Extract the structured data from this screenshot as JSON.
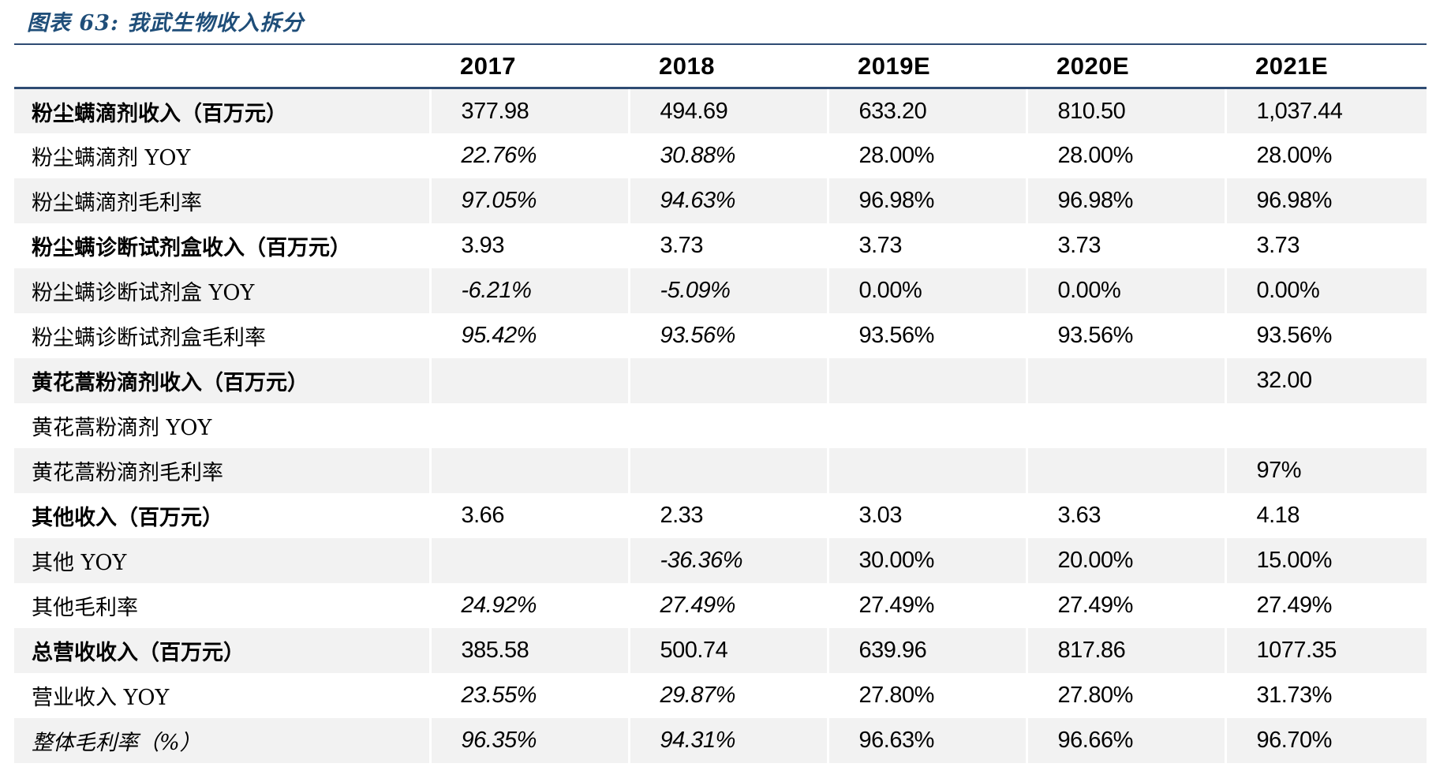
{
  "title": "图表 63: 我武生物收入拆分",
  "colors": {
    "title_text": "#1F4E79",
    "rule_line": "#2E4B73",
    "row_shade": "#F2F2F2",
    "body_text": "#000000",
    "background": "#FFFFFF"
  },
  "table": {
    "columns": [
      "",
      "2017",
      "2018",
      "2019E",
      "2020E",
      "2021E"
    ],
    "rows": [
      {
        "label": "粉尘螨滴剂收入（百万元）",
        "label_bold": true,
        "label_italic": false,
        "values": [
          "377.98",
          "494.69",
          "633.20",
          "810.50",
          "1,037.44"
        ],
        "italics": [
          false,
          false,
          false,
          false,
          false
        ]
      },
      {
        "label": "粉尘螨滴剂 YOY",
        "label_bold": false,
        "label_italic": false,
        "values": [
          "22.76%",
          "30.88%",
          "28.00%",
          "28.00%",
          "28.00%"
        ],
        "italics": [
          true,
          true,
          false,
          false,
          false
        ]
      },
      {
        "label": "粉尘螨滴剂毛利率",
        "label_bold": false,
        "label_italic": false,
        "values": [
          "97.05%",
          "94.63%",
          "96.98%",
          "96.98%",
          "96.98%"
        ],
        "italics": [
          true,
          true,
          false,
          false,
          false
        ]
      },
      {
        "label": "粉尘螨诊断试剂盒收入（百万元）",
        "label_bold": true,
        "label_italic": false,
        "values": [
          "3.93",
          "3.73",
          "3.73",
          "3.73",
          "3.73"
        ],
        "italics": [
          false,
          false,
          false,
          false,
          false
        ]
      },
      {
        "label": "粉尘螨诊断试剂盒 YOY",
        "label_bold": false,
        "label_italic": false,
        "values": [
          "-6.21%",
          "-5.09%",
          "0.00%",
          "0.00%",
          "0.00%"
        ],
        "italics": [
          true,
          true,
          false,
          false,
          false
        ]
      },
      {
        "label": "粉尘螨诊断试剂盒毛利率",
        "label_bold": false,
        "label_italic": false,
        "values": [
          "95.42%",
          "93.56%",
          "93.56%",
          "93.56%",
          "93.56%"
        ],
        "italics": [
          true,
          true,
          false,
          false,
          false
        ]
      },
      {
        "label": "黄花蒿粉滴剂收入（百万元）",
        "label_bold": true,
        "label_italic": false,
        "values": [
          "",
          "",
          "",
          "",
          "32.00"
        ],
        "italics": [
          false,
          false,
          false,
          false,
          false
        ]
      },
      {
        "label": "黄花蒿粉滴剂 YOY",
        "label_bold": false,
        "label_italic": false,
        "values": [
          "",
          "",
          "",
          "",
          ""
        ],
        "italics": [
          false,
          false,
          false,
          false,
          false
        ]
      },
      {
        "label": "黄花蒿粉滴剂毛利率",
        "label_bold": false,
        "label_italic": false,
        "values": [
          "",
          "",
          "",
          "",
          "97%"
        ],
        "italics": [
          false,
          false,
          false,
          false,
          false
        ]
      },
      {
        "label": "其他收入（百万元）",
        "label_bold": true,
        "label_italic": false,
        "values": [
          "3.66",
          "2.33",
          "3.03",
          "3.63",
          "4.18"
        ],
        "italics": [
          false,
          false,
          false,
          false,
          false
        ]
      },
      {
        "label": "其他 YOY",
        "label_bold": false,
        "label_italic": false,
        "values": [
          "",
          "-36.36%",
          "30.00%",
          "20.00%",
          "15.00%"
        ],
        "italics": [
          false,
          true,
          false,
          false,
          false
        ]
      },
      {
        "label": "其他毛利率",
        "label_bold": false,
        "label_italic": false,
        "values": [
          "24.92%",
          "27.49%",
          "27.49%",
          "27.49%",
          "27.49%"
        ],
        "italics": [
          true,
          true,
          false,
          false,
          false
        ]
      },
      {
        "label": "总营收收入（百万元）",
        "label_bold": true,
        "label_italic": false,
        "values": [
          "385.58",
          "500.74",
          "639.96",
          "817.86",
          "1077.35"
        ],
        "italics": [
          false,
          false,
          false,
          false,
          false
        ]
      },
      {
        "label": "营业收入 YOY",
        "label_bold": false,
        "label_italic": false,
        "values": [
          "23.55%",
          "29.87%",
          "27.80%",
          "27.80%",
          "31.73%"
        ],
        "italics": [
          true,
          true,
          false,
          false,
          false
        ]
      },
      {
        "label": "整体毛利率（%）",
        "label_bold": false,
        "label_italic": true,
        "values": [
          "96.35%",
          "94.31%",
          "96.63%",
          "96.66%",
          "96.70%"
        ],
        "italics": [
          true,
          true,
          false,
          false,
          false
        ]
      }
    ]
  }
}
